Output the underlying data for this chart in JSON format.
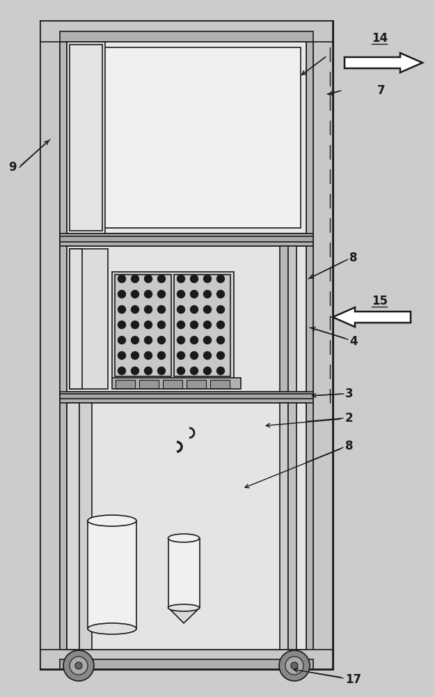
{
  "bg_color": "#cccccc",
  "line_color": "#1a1a1a",
  "face_light": "#f0f0f0",
  "face_mid": "#d8d8d8",
  "face_dark": "#b0b0b0",
  "face_frame": "#c8c8c8",
  "lw": 1.2,
  "tlw": 2.2,
  "figsize": [
    6.25,
    10.0
  ],
  "labels": [
    "14",
    "7",
    "9",
    "8",
    "15",
    "4",
    "3",
    "2",
    "8",
    "17"
  ]
}
